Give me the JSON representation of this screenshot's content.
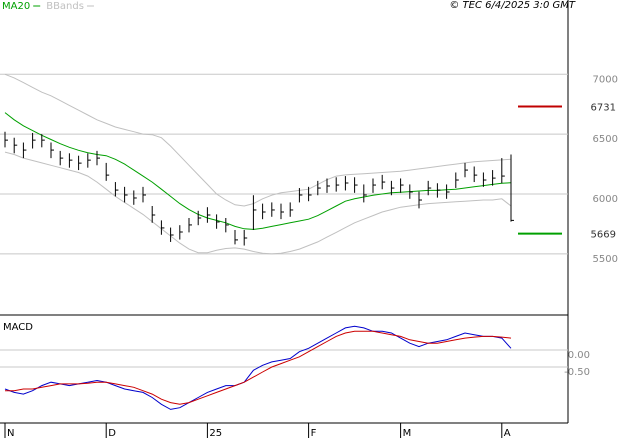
{
  "chart_data": [
    {
      "type": "ohlc",
      "credit": "© TEC 6/4/2025 3:0 GMT",
      "color": "#000000",
      "high": [
        6520,
        6470,
        6430,
        6510,
        6500,
        6430,
        6360,
        6340,
        6320,
        6340,
        6360,
        6260,
        6100,
        6060,
        6030,
        6060,
        5900,
        5780,
        5720,
        5740,
        5800,
        5860,
        5890,
        5830,
        5800,
        5700,
        5700,
        5990,
        5920,
        5930,
        5920,
        5930,
        6050,
        6060,
        6110,
        6130,
        6140,
        6150,
        6140,
        6080,
        6130,
        6160,
        6110,
        6130,
        6080,
        6020,
        6110,
        6090,
        6080,
        6180,
        6260,
        6230,
        6180,
        6200,
        6300,
        6330
      ],
      "low": [
        6390,
        6340,
        6300,
        6380,
        6390,
        6300,
        6240,
        6220,
        6200,
        6220,
        6240,
        6110,
        5980,
        5930,
        5910,
        5930,
        5760,
        5660,
        5600,
        5620,
        5680,
        5740,
        5760,
        5710,
        5680,
        5580,
        5570,
        5700,
        5790,
        5810,
        5790,
        5810,
        5930,
        5940,
        5990,
        6010,
        6020,
        6030,
        6010,
        5930,
        6010,
        6040,
        5990,
        6010,
        5960,
        5880,
        5990,
        5970,
        5960,
        6050,
        6140,
        6100,
        6060,
        6070,
        6090,
        5770
      ],
      "close": [
        6450,
        6408,
        6367,
        6450,
        6450,
        6367,
        6300,
        6283,
        6258,
        6283,
        6300,
        6158,
        6033,
        5992,
        5967,
        5992,
        5825,
        5717,
        5658,
        5683,
        5742,
        5800,
        5825,
        5767,
        5742,
        5617,
        5633,
        5867,
        5850,
        5867,
        5850,
        5867,
        5992,
        5992,
        6050,
        6067,
        6075,
        6092,
        6075,
        5992,
        6075,
        6100,
        6050,
        6075,
        6017,
        5950,
        6050,
        6033,
        6017,
        6117,
        6200,
        6158,
        6117,
        6133,
        6150,
        5780
      ],
      "series": [
        {
          "name": "MA20",
          "color": "#00a000",
          "values": [
            6680,
            6620,
            6570,
            6530,
            6490,
            6455,
            6420,
            6390,
            6365,
            6345,
            6330,
            6320,
            6290,
            6250,
            6200,
            6150,
            6100,
            6040,
            5980,
            5920,
            5870,
            5830,
            5800,
            5780,
            5760,
            5730,
            5710,
            5705,
            5715,
            5730,
            5745,
            5760,
            5775,
            5790,
            5820,
            5860,
            5900,
            5940,
            5960,
            5975,
            5990,
            6000,
            6010,
            6015,
            6020,
            6025,
            6030,
            6030,
            6035,
            6040,
            6050,
            6060,
            6070,
            6080,
            6090,
            6095
          ]
        },
        {
          "name": "BBands",
          "color": "#c0c0c0",
          "upper": [
            7000,
            6970,
            6930,
            6890,
            6850,
            6820,
            6780,
            6740,
            6700,
            6660,
            6620,
            6590,
            6560,
            6540,
            6520,
            6500,
            6495,
            6470,
            6400,
            6320,
            6240,
            6160,
            6080,
            6000,
            5950,
            5910,
            5900,
            5920,
            5960,
            5990,
            6010,
            6020,
            6030,
            6040,
            6080,
            6120,
            6150,
            6160,
            6165,
            6170,
            6175,
            6180,
            6185,
            6190,
            6200,
            6210,
            6220,
            6230,
            6240,
            6250,
            6260,
            6270,
            6275,
            6280,
            6285,
            6290
          ],
          "lower": [
            6350,
            6330,
            6300,
            6280,
            6260,
            6240,
            6220,
            6200,
            6180,
            6150,
            6100,
            6040,
            5980,
            5930,
            5880,
            5830,
            5770,
            5710,
            5650,
            5590,
            5540,
            5510,
            5510,
            5530,
            5545,
            5550,
            5540,
            5520,
            5505,
            5500,
            5505,
            5520,
            5540,
            5570,
            5600,
            5640,
            5680,
            5720,
            5760,
            5790,
            5820,
            5850,
            5870,
            5890,
            5900,
            5910,
            5920,
            5925,
            5930,
            5935,
            5940,
            5945,
            5950,
            5950,
            5960,
            5900
          ]
        }
      ],
      "levels": [
        {
          "value": 6731,
          "color": "#c00000"
        },
        {
          "value": 5669,
          "color": "#00a000"
        }
      ],
      "ylim": [
        4990,
        7620
      ],
      "yticks": [
        5500,
        6000,
        6500,
        7000
      ],
      "grid": true
    },
    {
      "type": "line",
      "title": "MACD",
      "categories": [
        "N",
        null,
        null,
        null,
        null,
        null,
        null,
        null,
        null,
        null,
        null,
        "D",
        null,
        null,
        null,
        null,
        null,
        null,
        null,
        null,
        null,
        null,
        "25",
        null,
        null,
        null,
        null,
        null,
        null,
        null,
        null,
        null,
        null,
        "F",
        null,
        null,
        null,
        null,
        null,
        null,
        null,
        null,
        null,
        "M",
        null,
        null,
        null,
        null,
        null,
        null,
        null,
        null,
        null,
        null,
        "A",
        null
      ],
      "series": [
        {
          "color": "#0000cc",
          "values": [
            -1.15,
            -1.25,
            -1.3,
            -1.2,
            -1.05,
            -0.95,
            -1.0,
            -1.05,
            -1.0,
            -0.95,
            -0.9,
            -0.95,
            -1.05,
            -1.15,
            -1.2,
            -1.25,
            -1.4,
            -1.6,
            -1.75,
            -1.7,
            -1.55,
            -1.4,
            -1.25,
            -1.15,
            -1.05,
            -1.05,
            -0.95,
            -0.6,
            -0.45,
            -0.35,
            -0.3,
            -0.25,
            -0.05,
            0.05,
            0.2,
            0.35,
            0.5,
            0.65,
            0.7,
            0.65,
            0.55,
            0.55,
            0.5,
            0.35,
            0.2,
            0.1,
            0.2,
            0.25,
            0.3,
            0.4,
            0.5,
            0.45,
            0.4,
            0.4,
            0.35,
            0.05
          ]
        },
        {
          "color": "#cc0000",
          "values": [
            -1.2,
            -1.2,
            -1.15,
            -1.15,
            -1.1,
            -1.05,
            -1.0,
            -1.0,
            -1.0,
            -0.98,
            -0.95,
            -0.95,
            -1.0,
            -1.05,
            -1.1,
            -1.2,
            -1.3,
            -1.45,
            -1.55,
            -1.6,
            -1.55,
            -1.45,
            -1.35,
            -1.25,
            -1.15,
            -1.05,
            -0.95,
            -0.8,
            -0.65,
            -0.5,
            -0.4,
            -0.3,
            -0.2,
            -0.05,
            0.1,
            0.25,
            0.4,
            0.5,
            0.55,
            0.55,
            0.55,
            0.5,
            0.45,
            0.4,
            0.3,
            0.25,
            0.2,
            0.2,
            0.25,
            0.3,
            0.35,
            0.38,
            0.4,
            0.4,
            0.38,
            0.35
          ]
        }
      ],
      "ylim": [
        -2.15,
        1.0
      ],
      "yticks": [
        {
          "value": 0,
          "label": "0.00"
        },
        {
          "value": -0.5,
          "label": "-0.50"
        }
      ],
      "grid": true
    }
  ]
}
